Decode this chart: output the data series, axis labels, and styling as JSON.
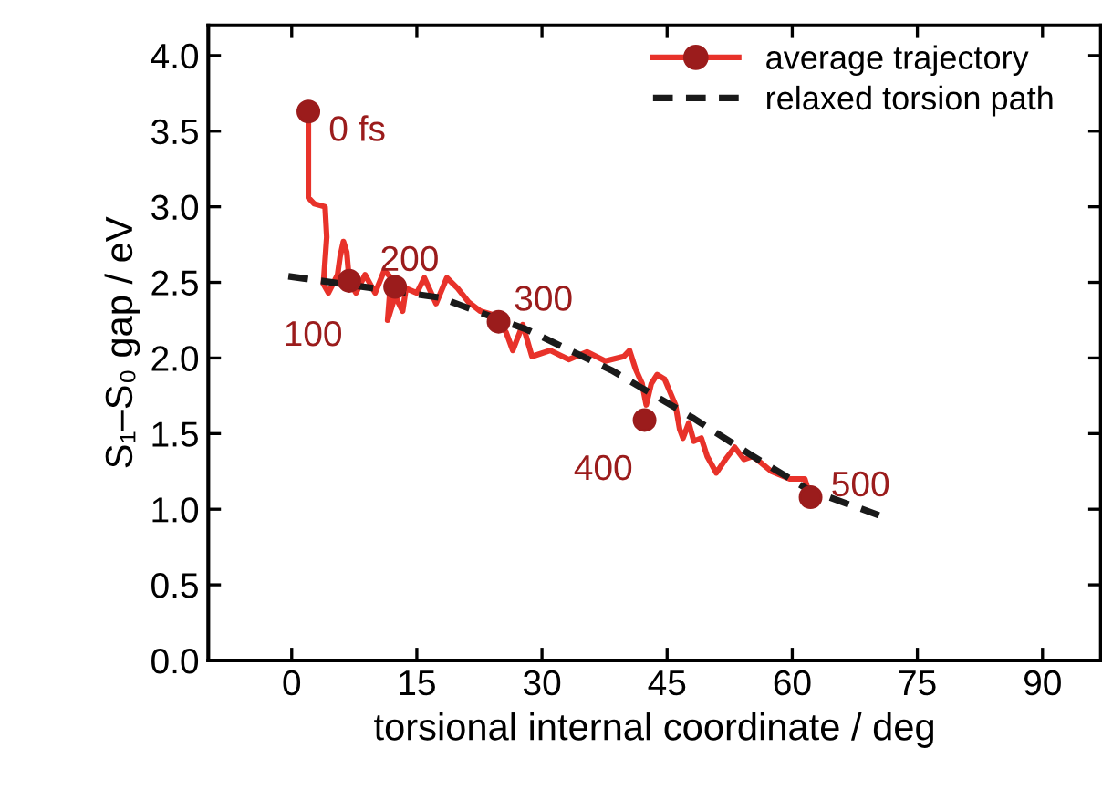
{
  "chart_data": {
    "type": "line",
    "xlabel": "torsional internal coordinate / deg",
    "ylabel": "S₁–S₀ gap / eV",
    "xlim": [
      -10,
      97
    ],
    "xticks": [
      0,
      15,
      30,
      45,
      60,
      75,
      90
    ],
    "ylim": [
      0,
      4.2
    ],
    "yticks": [
      {
        "value": 0,
        "label": "0.0"
      },
      0.5,
      {
        "value": 1,
        "label": "1.0"
      },
      1.5,
      {
        "value": 2,
        "label": "2.0"
      },
      2.5,
      {
        "value": 3,
        "label": "3.0"
      },
      3.5,
      {
        "value": 4,
        "label": "4.0"
      }
    ],
    "grid": false,
    "legend": "top right",
    "series": [
      {
        "name": "average trajectory",
        "color": "#e8322a",
        "line_style": "solid",
        "marker": "none",
        "x": [
          2.0,
          2.0,
          2.7,
          4.0,
          4.2,
          3.8,
          4.4,
          5.5,
          5.8,
          6.2,
          6.6,
          6.9,
          7.7,
          8.8,
          10.0,
          11.1,
          11.9,
          11.5,
          12.4,
          13.3,
          13.7,
          15.0,
          15.9,
          17.3,
          18.6,
          19.9,
          21.2,
          22.6,
          23.9,
          24.8,
          25.7,
          26.5,
          27.7,
          28.8,
          31.0,
          33.2,
          35.4,
          37.6,
          39.8,
          40.5,
          41.2,
          42.0,
          42.5,
          43.1,
          43.8,
          44.7,
          46.0,
          46.5,
          46.9,
          47.6,
          48.2,
          49.1,
          49.8,
          50.9,
          52.0,
          53.1,
          54.2,
          55.3,
          57.5,
          59.7,
          61.5,
          61.9,
          62.2
        ],
        "values": [
          3.61,
          3.06,
          3.02,
          3.0,
          2.8,
          2.49,
          2.43,
          2.55,
          2.67,
          2.77,
          2.7,
          2.51,
          2.43,
          2.55,
          2.43,
          2.58,
          2.53,
          2.25,
          2.41,
          2.31,
          2.46,
          2.43,
          2.53,
          2.36,
          2.53,
          2.46,
          2.37,
          2.31,
          2.29,
          2.24,
          2.17,
          2.05,
          2.22,
          2.01,
          2.05,
          1.99,
          2.04,
          1.98,
          2.01,
          2.05,
          1.93,
          1.83,
          1.69,
          1.83,
          1.89,
          1.86,
          1.69,
          1.53,
          1.47,
          1.57,
          1.45,
          1.47,
          1.35,
          1.24,
          1.33,
          1.41,
          1.33,
          1.35,
          1.25,
          1.2,
          1.2,
          1.13,
          1.08
        ]
      },
      {
        "type": "scatter",
        "color": "#9b1c1c",
        "marker": "circle",
        "x": [
          2.0,
          6.9,
          12.4,
          24.8,
          42.3,
          62.2
        ],
        "values": [
          3.63,
          2.51,
          2.47,
          2.24,
          1.59,
          1.08
        ]
      },
      {
        "name": "relaxed torsion path",
        "color": "#1a1a1a",
        "line_style": "dashed",
        "marker": "none",
        "x": [
          -0.4,
          17.7,
          28.1,
          38.3,
          48.2,
          55.3,
          61.9,
          70.4
        ],
        "values": [
          2.54,
          2.4,
          2.19,
          1.92,
          1.6,
          1.35,
          1.13,
          0.96
        ]
      }
    ],
    "annotations": [
      {
        "text": "0 fs",
        "x": 2.0,
        "y": 3.63
      },
      {
        "text": "100",
        "x": 6.9,
        "y": 2.51
      },
      {
        "text": "200",
        "x": 12.4,
        "y": 2.47
      },
      {
        "text": "300",
        "x": 24.8,
        "y": 2.24
      },
      {
        "text": "400",
        "x": 42.3,
        "y": 1.59
      },
      {
        "text": "500",
        "x": 62.2,
        "y": 1.08
      }
    ]
  }
}
